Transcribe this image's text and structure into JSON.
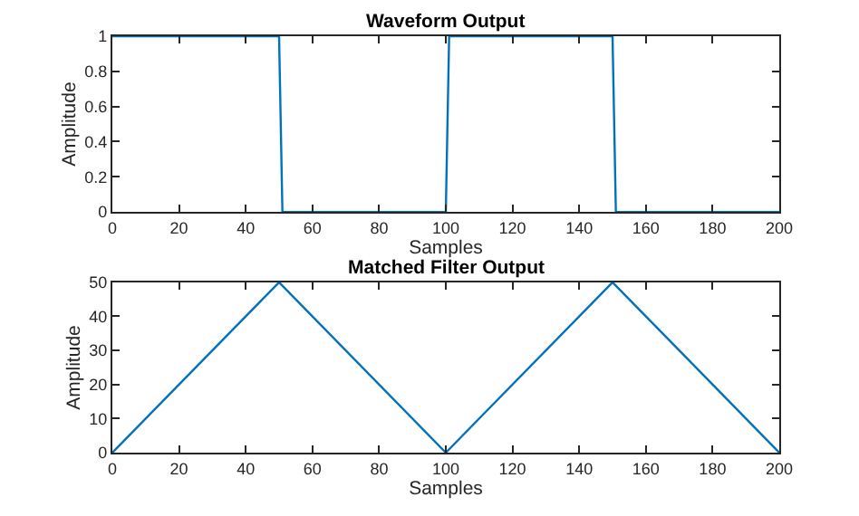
{
  "chart_data": [
    {
      "type": "line",
      "title": "Waveform Output",
      "xlabel": "Samples",
      "ylabel": "Amplitude",
      "x": [
        0,
        50,
        51,
        100,
        101,
        150,
        151,
        200
      ],
      "series": [
        {
          "color": "#0072bd",
          "values": [
            1,
            1,
            0,
            0,
            1,
            1,
            0,
            0
          ]
        }
      ],
      "xlim": [
        0,
        200
      ],
      "xticks": [
        0,
        20,
        40,
        60,
        80,
        100,
        120,
        140,
        160,
        180,
        200
      ],
      "ylim": [
        0,
        1
      ],
      "yticks": [
        0,
        0.2,
        0.4,
        0.6,
        0.8,
        1
      ]
    },
    {
      "type": "line",
      "title": "Matched Filter Output",
      "xlabel": "Samples",
      "ylabel": "Amplitude",
      "x": [
        0,
        50,
        100,
        150,
        200
      ],
      "series": [
        {
          "color": "#0072bd",
          "values": [
            0,
            50,
            0,
            50,
            0
          ]
        }
      ],
      "xlim": [
        0,
        200
      ],
      "xticks": [
        0,
        20,
        40,
        60,
        80,
        100,
        120,
        140,
        160,
        180,
        200
      ],
      "ylim": [
        0,
        50
      ],
      "yticks": [
        0,
        10,
        20,
        30,
        40,
        50
      ]
    }
  ]
}
